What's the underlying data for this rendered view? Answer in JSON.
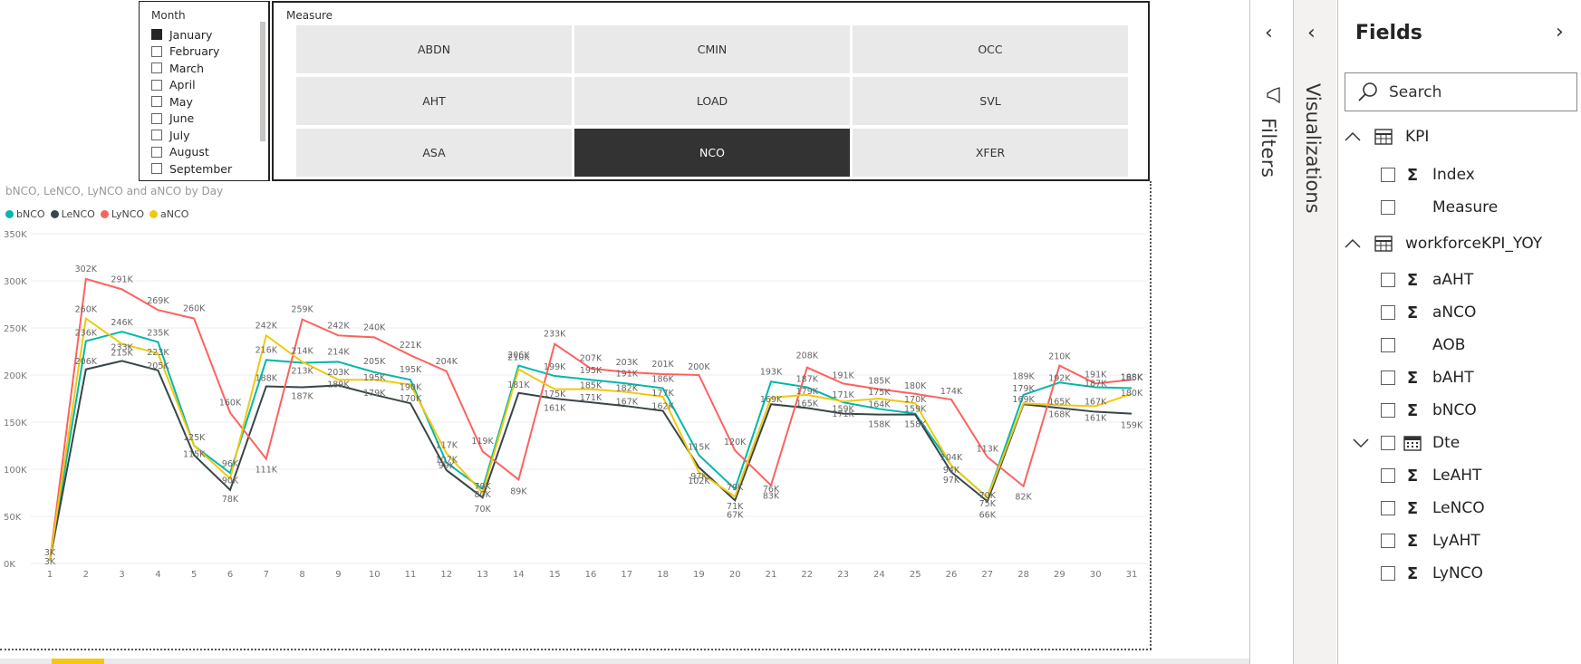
{
  "month_slicer": {
    "title": "Month",
    "items": [
      {
        "label": "January",
        "selected": true
      },
      {
        "label": "February",
        "selected": false
      },
      {
        "label": "March",
        "selected": false
      },
      {
        "label": "April",
        "selected": false
      },
      {
        "label": "May",
        "selected": false
      },
      {
        "label": "June",
        "selected": false
      },
      {
        "label": "July",
        "selected": false
      },
      {
        "label": "August",
        "selected": false
      },
      {
        "label": "September",
        "selected": false
      }
    ]
  },
  "measure_slicer": {
    "title": "Measure",
    "buttons": [
      "ABDN",
      "CMIN",
      "OCC",
      "AHT",
      "LOAD",
      "SVL",
      "ASA",
      "NCO",
      "XFER"
    ],
    "selected": "NCO"
  },
  "chart_data": {
    "type": "line",
    "title": "bNCO, LeNCO, LyNCO and aNCO by Day",
    "xlabel": "",
    "ylabel": "",
    "x": [
      1,
      2,
      3,
      4,
      5,
      6,
      7,
      8,
      9,
      10,
      11,
      12,
      13,
      14,
      15,
      16,
      17,
      18,
      19,
      20,
      21,
      22,
      23,
      24,
      25,
      26,
      27,
      28,
      29,
      30,
      31
    ],
    "ylim": [
      0,
      350000
    ],
    "yticks": [
      "0K",
      "50K",
      "100K",
      "150K",
      "200K",
      "250K",
      "300K",
      "350K"
    ],
    "legend_position": "top-left",
    "grid": true,
    "series": [
      {
        "name": "bNCO",
        "color": "#01B8AA",
        "values": [
          3000,
          236000,
          246000,
          235000,
          125000,
          96000,
          216000,
          213000,
          214000,
          203000,
          195000,
          107000,
          79000,
          210000,
          199000,
          195000,
          191000,
          186000,
          115000,
          79000,
          193000,
          187000,
          171000,
          164000,
          159000,
          104000,
          70000,
          179000,
          192000,
          187000,
          186000
        ]
      },
      {
        "name": "LeNCO",
        "color": "#374649",
        "values": [
          3000,
          206000,
          215000,
          205000,
          115000,
          78000,
          188000,
          187000,
          189000,
          179000,
          170000,
          99000,
          70000,
          181000,
          175000,
          171000,
          167000,
          162000,
          102000,
          67000,
          169000,
          165000,
          159000,
          158000,
          158000,
          97000,
          66000,
          169000,
          165000,
          161000,
          159000
        ]
      },
      {
        "name": "LyNCO",
        "color": "#FD625E",
        "values": [
          3000,
          302000,
          291000,
          269000,
          260000,
          160000,
          111000,
          259000,
          242000,
          240000,
          221000,
          204000,
          119000,
          89000,
          233000,
          207000,
          203000,
          201000,
          200000,
          120000,
          83000,
          208000,
          191000,
          185000,
          180000,
          174000,
          113000,
          82000,
          210000,
          191000,
          195000
        ]
      },
      {
        "name": "aNCO",
        "color": "#F2C80F",
        "values": [
          3000,
          260000,
          233000,
          223000,
          125000,
          90000,
          242000,
          214000,
          195000,
          195000,
          190000,
          117000,
          75000,
          206000,
          185000,
          185000,
          182000,
          177000,
          97000,
          71000,
          176000,
          179000,
          172000,
          175000,
          170000,
          104000,
          70000,
          170000,
          168000,
          167000,
          180000
        ]
      }
    ],
    "point_labels": [
      {
        "x": 1,
        "text": "3K",
        "v": 3000,
        "dy": -10
      },
      {
        "x": 1,
        "text": "3K",
        "v": 3000,
        "dy": 0
      },
      {
        "x": 2,
        "text": "302K",
        "v": 302000,
        "dy": -12
      },
      {
        "x": 2,
        "text": "260K",
        "v": 260000,
        "dy": -11
      },
      {
        "x": 2,
        "text": "236K",
        "v": 236000,
        "dy": -10
      },
      {
        "x": 2,
        "text": "206K",
        "v": 206000,
        "dy": -10
      },
      {
        "x": 3,
        "text": "291K",
        "v": 291000,
        "dy": -12
      },
      {
        "x": 3,
        "text": "246K",
        "v": 246000,
        "dy": -11
      },
      {
        "x": 3,
        "text": "233K",
        "v": 233000,
        "dy": 3
      },
      {
        "x": 3,
        "text": "215K",
        "v": 215000,
        "dy": -10
      },
      {
        "x": 4,
        "text": "269K",
        "v": 269000,
        "dy": -11
      },
      {
        "x": 4,
        "text": "235K",
        "v": 235000,
        "dy": -11
      },
      {
        "x": 4,
        "text": "223K",
        "v": 223000,
        "dy": -2
      },
      {
        "x": 4,
        "text": "205K",
        "v": 205000,
        "dy": -6
      },
      {
        "x": 5,
        "text": "260K",
        "v": 260000,
        "dy": -12
      },
      {
        "x": 5,
        "text": "125K",
        "v": 125000,
        "dy": -10
      },
      {
        "x": 5,
        "text": "115K",
        "v": 115000,
        "dy": -2
      },
      {
        "x": 6,
        "text": "160K",
        "v": 160000,
        "dy": -12
      },
      {
        "x": 6,
        "text": "96K",
        "v": 96000,
        "dy": -11
      },
      {
        "x": 6,
        "text": "90K",
        "v": 90000,
        "dy": 1
      },
      {
        "x": 6,
        "text": "78K",
        "v": 78000,
        "dy": 9
      },
      {
        "x": 7,
        "text": "242K",
        "v": 242000,
        "dy": -12
      },
      {
        "x": 7,
        "text": "216K",
        "v": 216000,
        "dy": -12
      },
      {
        "x": 7,
        "text": "188K",
        "v": 188000,
        "dy": -10
      },
      {
        "x": 7,
        "text": "111K",
        "v": 111000,
        "dy": 11
      },
      {
        "x": 8,
        "text": "259K",
        "v": 259000,
        "dy": -12
      },
      {
        "x": 8,
        "text": "214K",
        "v": 214000,
        "dy": -13
      },
      {
        "x": 8,
        "text": "213K",
        "v": 213000,
        "dy": 8
      },
      {
        "x": 8,
        "text": "187K",
        "v": 187000,
        "dy": 9
      },
      {
        "x": 9,
        "text": "242K",
        "v": 242000,
        "dy": -12
      },
      {
        "x": 9,
        "text": "214K",
        "v": 214000,
        "dy": -12
      },
      {
        "x": 9,
        "text": "203K",
        "v": 203000,
        "dy": -1
      },
      {
        "x": 9,
        "text": "189K",
        "v": 189000,
        "dy": -2
      },
      {
        "x": 10,
        "text": "240K",
        "v": 240000,
        "dy": -12
      },
      {
        "x": 10,
        "text": "205K",
        "v": 205000,
        "dy": -11
      },
      {
        "x": 10,
        "text": "195K",
        "v": 195000,
        "dy": -3
      },
      {
        "x": 10,
        "text": "179K",
        "v": 179000,
        "dy": -3
      },
      {
        "x": 11,
        "text": "221K",
        "v": 221000,
        "dy": -12
      },
      {
        "x": 11,
        "text": "195K",
        "v": 195000,
        "dy": -12
      },
      {
        "x": 11,
        "text": "190K",
        "v": 190000,
        "dy": 2
      },
      {
        "x": 11,
        "text": "170K",
        "v": 170000,
        "dy": -6
      },
      {
        "x": 12,
        "text": "204K",
        "v": 204000,
        "dy": -12
      },
      {
        "x": 12,
        "text": "117K",
        "v": 117000,
        "dy": -10
      },
      {
        "x": 12,
        "text": "107K",
        "v": 107000,
        "dy": -4
      },
      {
        "x": 12,
        "text": "99K",
        "v": 99000,
        "dy": -6
      },
      {
        "x": 13,
        "text": "119K",
        "v": 119000,
        "dy": -12
      },
      {
        "x": 13,
        "text": "79K",
        "v": 79000,
        "dy": -4
      },
      {
        "x": 13,
        "text": "80K",
        "v": 80000,
        "dy": 6
      },
      {
        "x": 13,
        "text": "70K",
        "v": 70000,
        "dy": 12
      },
      {
        "x": 14,
        "text": "210K",
        "v": 210000,
        "dy": -10
      },
      {
        "x": 14,
        "text": "206K",
        "v": 206000,
        "dy": -17
      },
      {
        "x": 14,
        "text": "181K",
        "v": 181000,
        "dy": -10
      },
      {
        "x": 14,
        "text": "89K",
        "v": 89000,
        "dy": 12
      },
      {
        "x": 15,
        "text": "233K",
        "v": 233000,
        "dy": -12
      },
      {
        "x": 15,
        "text": "199K",
        "v": 199000,
        "dy": -11
      },
      {
        "x": 15,
        "text": "161K",
        "v": 161000,
        "dy": -5
      },
      {
        "x": 15,
        "text": "175K",
        "v": 175000,
        "dy": -6
      },
      {
        "x": 16,
        "text": "207K",
        "v": 207000,
        "dy": -12
      },
      {
        "x": 16,
        "text": "195K",
        "v": 195000,
        "dy": -11
      },
      {
        "x": 16,
        "text": "185K",
        "v": 185000,
        "dy": -5
      },
      {
        "x": 16,
        "text": "171K",
        "v": 171000,
        "dy": -6
      },
      {
        "x": 17,
        "text": "203K",
        "v": 203000,
        "dy": -12
      },
      {
        "x": 17,
        "text": "191K",
        "v": 191000,
        "dy": -12
      },
      {
        "x": 17,
        "text": "182K",
        "v": 182000,
        "dy": -5
      },
      {
        "x": 17,
        "text": "167K",
        "v": 167000,
        "dy": -6
      },
      {
        "x": 18,
        "text": "201K",
        "v": 201000,
        "dy": -12
      },
      {
        "x": 18,
        "text": "186K",
        "v": 186000,
        "dy": -11
      },
      {
        "x": 18,
        "text": "177K",
        "v": 177000,
        "dy": -5
      },
      {
        "x": 18,
        "text": "162K",
        "v": 162000,
        "dy": -6
      },
      {
        "x": 19,
        "text": "200K",
        "v": 200000,
        "dy": -10
      },
      {
        "x": 19,
        "text": "115K",
        "v": 115000,
        "dy": -10
      },
      {
        "x": 19,
        "text": "97K",
        "v": 97000,
        "dy": 4
      },
      {
        "x": 19,
        "text": "102K",
        "v": 102000,
        "dy": 14
      },
      {
        "x": 20,
        "text": "120K",
        "v": 120000,
        "dy": -10
      },
      {
        "x": 20,
        "text": "79K",
        "v": 79000,
        "dy": -3
      },
      {
        "x": 20,
        "text": "71K",
        "v": 71000,
        "dy": 10
      },
      {
        "x": 20,
        "text": "67K",
        "v": 67000,
        "dy": 15
      },
      {
        "x": 21,
        "text": "193K",
        "v": 193000,
        "dy": -12
      },
      {
        "x": 21,
        "text": "169K",
        "v": 169000,
        "dy": -6
      },
      {
        "x": 21,
        "text": "76K",
        "v": 76000,
        "dy": -4
      },
      {
        "x": 21,
        "text": "83K",
        "v": 83000,
        "dy": 11
      },
      {
        "x": 22,
        "text": "208K",
        "v": 208000,
        "dy": -14
      },
      {
        "x": 22,
        "text": "187K",
        "v": 187000,
        "dy": -10
      },
      {
        "x": 22,
        "text": "179K",
        "v": 179000,
        "dy": -5
      },
      {
        "x": 22,
        "text": "165K",
        "v": 165000,
        "dy": -6
      },
      {
        "x": 23,
        "text": "191K",
        "v": 191000,
        "dy": -10
      },
      {
        "x": 23,
        "text": "171K",
        "v": 171000,
        "dy": -9
      },
      {
        "x": 23,
        "text": "159K",
        "v": 159000,
        "dy": -6
      },
      {
        "x": 23,
        "text": "171K",
        "v": 171000,
        "dy": 12
      },
      {
        "x": 24,
        "text": "185K",
        "v": 185000,
        "dy": -10
      },
      {
        "x": 24,
        "text": "175K",
        "v": 175000,
        "dy": -8
      },
      {
        "x": 24,
        "text": "164K",
        "v": 164000,
        "dy": -6
      },
      {
        "x": 24,
        "text": "158K",
        "v": 158000,
        "dy": 10
      },
      {
        "x": 25,
        "text": "180K",
        "v": 180000,
        "dy": -10
      },
      {
        "x": 25,
        "text": "170K",
        "v": 170000,
        "dy": -5
      },
      {
        "x": 25,
        "text": "159K",
        "v": 159000,
        "dy": -6
      },
      {
        "x": 25,
        "text": "158K",
        "v": 158000,
        "dy": 10
      },
      {
        "x": 26,
        "text": "174K",
        "v": 174000,
        "dy": -10
      },
      {
        "x": 26,
        "text": "104K",
        "v": 104000,
        "dy": -10
      },
      {
        "x": 26,
        "text": "94K",
        "v": 94000,
        "dy": -6
      },
      {
        "x": 26,
        "text": "97K",
        "v": 97000,
        "dy": 8
      },
      {
        "x": 27,
        "text": "113K",
        "v": 113000,
        "dy": -10
      },
      {
        "x": 27,
        "text": "70K",
        "v": 70000,
        "dy": -3
      },
      {
        "x": 27,
        "text": "75K",
        "v": 75000,
        "dy": 11
      },
      {
        "x": 27,
        "text": "66K",
        "v": 66000,
        "dy": 14
      },
      {
        "x": 28,
        "text": "189K",
        "v": 189000,
        "dy": -11
      },
      {
        "x": 28,
        "text": "179K",
        "v": 179000,
        "dy": -8
      },
      {
        "x": 28,
        "text": "169K",
        "v": 169000,
        "dy": -6
      },
      {
        "x": 28,
        "text": "82K",
        "v": 82000,
        "dy": 11
      },
      {
        "x": 29,
        "text": "210K",
        "v": 210000,
        "dy": -11
      },
      {
        "x": 29,
        "text": "192K",
        "v": 192000,
        "dy": -6
      },
      {
        "x": 29,
        "text": "165K",
        "v": 165000,
        "dy": -8
      },
      {
        "x": 29,
        "text": "168K",
        "v": 168000,
        "dy": 9
      },
      {
        "x": 30,
        "text": "191K",
        "v": 191000,
        "dy": -11
      },
      {
        "x": 30,
        "text": "187K",
        "v": 187000,
        "dy": -5
      },
      {
        "x": 30,
        "text": "167K",
        "v": 167000,
        "dy": -6
      },
      {
        "x": 30,
        "text": "161K",
        "v": 161000,
        "dy": 6
      },
      {
        "x": 31,
        "text": "188K",
        "v": 188000,
        "dy": -11
      },
      {
        "x": 31,
        "text": "195K",
        "v": 195000,
        "dy": -3
      },
      {
        "x": 31,
        "text": "180K",
        "v": 180000,
        "dy": -2
      },
      {
        "x": 31,
        "text": "159K",
        "v": 159000,
        "dy": 12
      }
    ]
  },
  "filters_pane": {
    "label": "Filters"
  },
  "visualizations_pane": {
    "label": "Visualizations"
  },
  "fields_pane": {
    "title": "Fields",
    "search_placeholder": "Search",
    "tables": [
      {
        "name": "KPI",
        "expanded": true,
        "fields": [
          {
            "name": "Index",
            "sigma": true
          },
          {
            "name": "Measure",
            "sigma": false
          }
        ]
      },
      {
        "name": "workforceKPI_YOY",
        "expanded": true,
        "fields": [
          {
            "name": "aAHT",
            "sigma": true
          },
          {
            "name": "aNCO",
            "sigma": true
          },
          {
            "name": "AOB",
            "sigma": false
          },
          {
            "name": "bAHT",
            "sigma": true
          },
          {
            "name": "bNCO",
            "sigma": true
          },
          {
            "name": "Dte",
            "sigma": false,
            "calendar": true
          },
          {
            "name": "LeAHT",
            "sigma": true
          },
          {
            "name": "LeNCO",
            "sigma": true
          },
          {
            "name": "LyAHT",
            "sigma": true
          },
          {
            "name": "LyNCO",
            "sigma": true
          }
        ]
      }
    ]
  }
}
